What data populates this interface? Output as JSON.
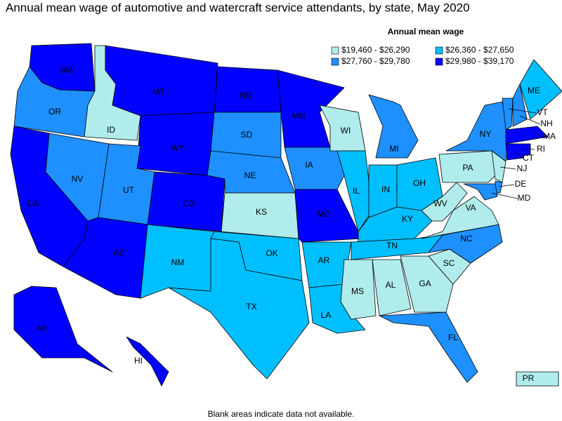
{
  "title": "Annual mean wage of automotive and watercraft service attendants, by state, May 2020",
  "legend": {
    "title": "Annual mean wage",
    "classes": [
      {
        "label": "$19,460 - $26,290",
        "color": "#b0ecec"
      },
      {
        "label": "$26,360 - $27,650",
        "color": "#00bfff"
      },
      {
        "label": "$27,760 - $29,780",
        "color": "#1e90ff"
      },
      {
        "label": "$29,980 - $39,170",
        "color": "#0000ff"
      }
    ]
  },
  "states": [
    {
      "abbr": "WA",
      "class": 3
    },
    {
      "abbr": "OR",
      "class": 2
    },
    {
      "abbr": "ID",
      "class": 0
    },
    {
      "abbr": "CA",
      "class": 3
    },
    {
      "abbr": "NV",
      "class": 2
    },
    {
      "abbr": "MT",
      "class": 3
    },
    {
      "abbr": "WY",
      "class": 3
    },
    {
      "abbr": "UT",
      "class": 2
    },
    {
      "abbr": "AZ",
      "class": 3
    },
    {
      "abbr": "CO",
      "class": 3
    },
    {
      "abbr": "NM",
      "class": 1
    },
    {
      "abbr": "ND",
      "class": 3
    },
    {
      "abbr": "SD",
      "class": 2
    },
    {
      "abbr": "NE",
      "class": 2
    },
    {
      "abbr": "KS",
      "class": 0
    },
    {
      "abbr": "OK",
      "class": 1
    },
    {
      "abbr": "TX",
      "class": 1
    },
    {
      "abbr": "MN",
      "class": 3
    },
    {
      "abbr": "IA",
      "class": 2
    },
    {
      "abbr": "MO",
      "class": 3
    },
    {
      "abbr": "AR",
      "class": 1
    },
    {
      "abbr": "LA",
      "class": 1
    },
    {
      "abbr": "WI",
      "class": 0
    },
    {
      "abbr": "IL",
      "class": 1
    },
    {
      "abbr": "MI",
      "class": 2
    },
    {
      "abbr": "IN",
      "class": 1
    },
    {
      "abbr": "OH",
      "class": 1
    },
    {
      "abbr": "KY",
      "class": 1
    },
    {
      "abbr": "TN",
      "class": 1
    },
    {
      "abbr": "MS",
      "class": 0
    },
    {
      "abbr": "AL",
      "class": 0
    },
    {
      "abbr": "GA",
      "class": 0
    },
    {
      "abbr": "FL",
      "class": 2
    },
    {
      "abbr": "SC",
      "class": 0
    },
    {
      "abbr": "NC",
      "class": 2
    },
    {
      "abbr": "VA",
      "class": 0
    },
    {
      "abbr": "WV",
      "class": 0
    },
    {
      "abbr": "PA",
      "class": 0
    },
    {
      "abbr": "NY",
      "class": 2
    },
    {
      "abbr": "VT",
      "class": 2
    },
    {
      "abbr": "NH",
      "class": 2
    },
    {
      "abbr": "ME",
      "class": 1
    },
    {
      "abbr": "MA",
      "class": 3
    },
    {
      "abbr": "RI",
      "class": 3
    },
    {
      "abbr": "CT",
      "class": 3
    },
    {
      "abbr": "NJ",
      "class": 0
    },
    {
      "abbr": "DE",
      "class": 2
    },
    {
      "abbr": "MD",
      "class": 2
    },
    {
      "abbr": "AK",
      "class": 3
    },
    {
      "abbr": "HI",
      "class": 3
    },
    {
      "abbr": "PR",
      "class": 0
    }
  ],
  "footnote": "Blank areas indicate data not available."
}
